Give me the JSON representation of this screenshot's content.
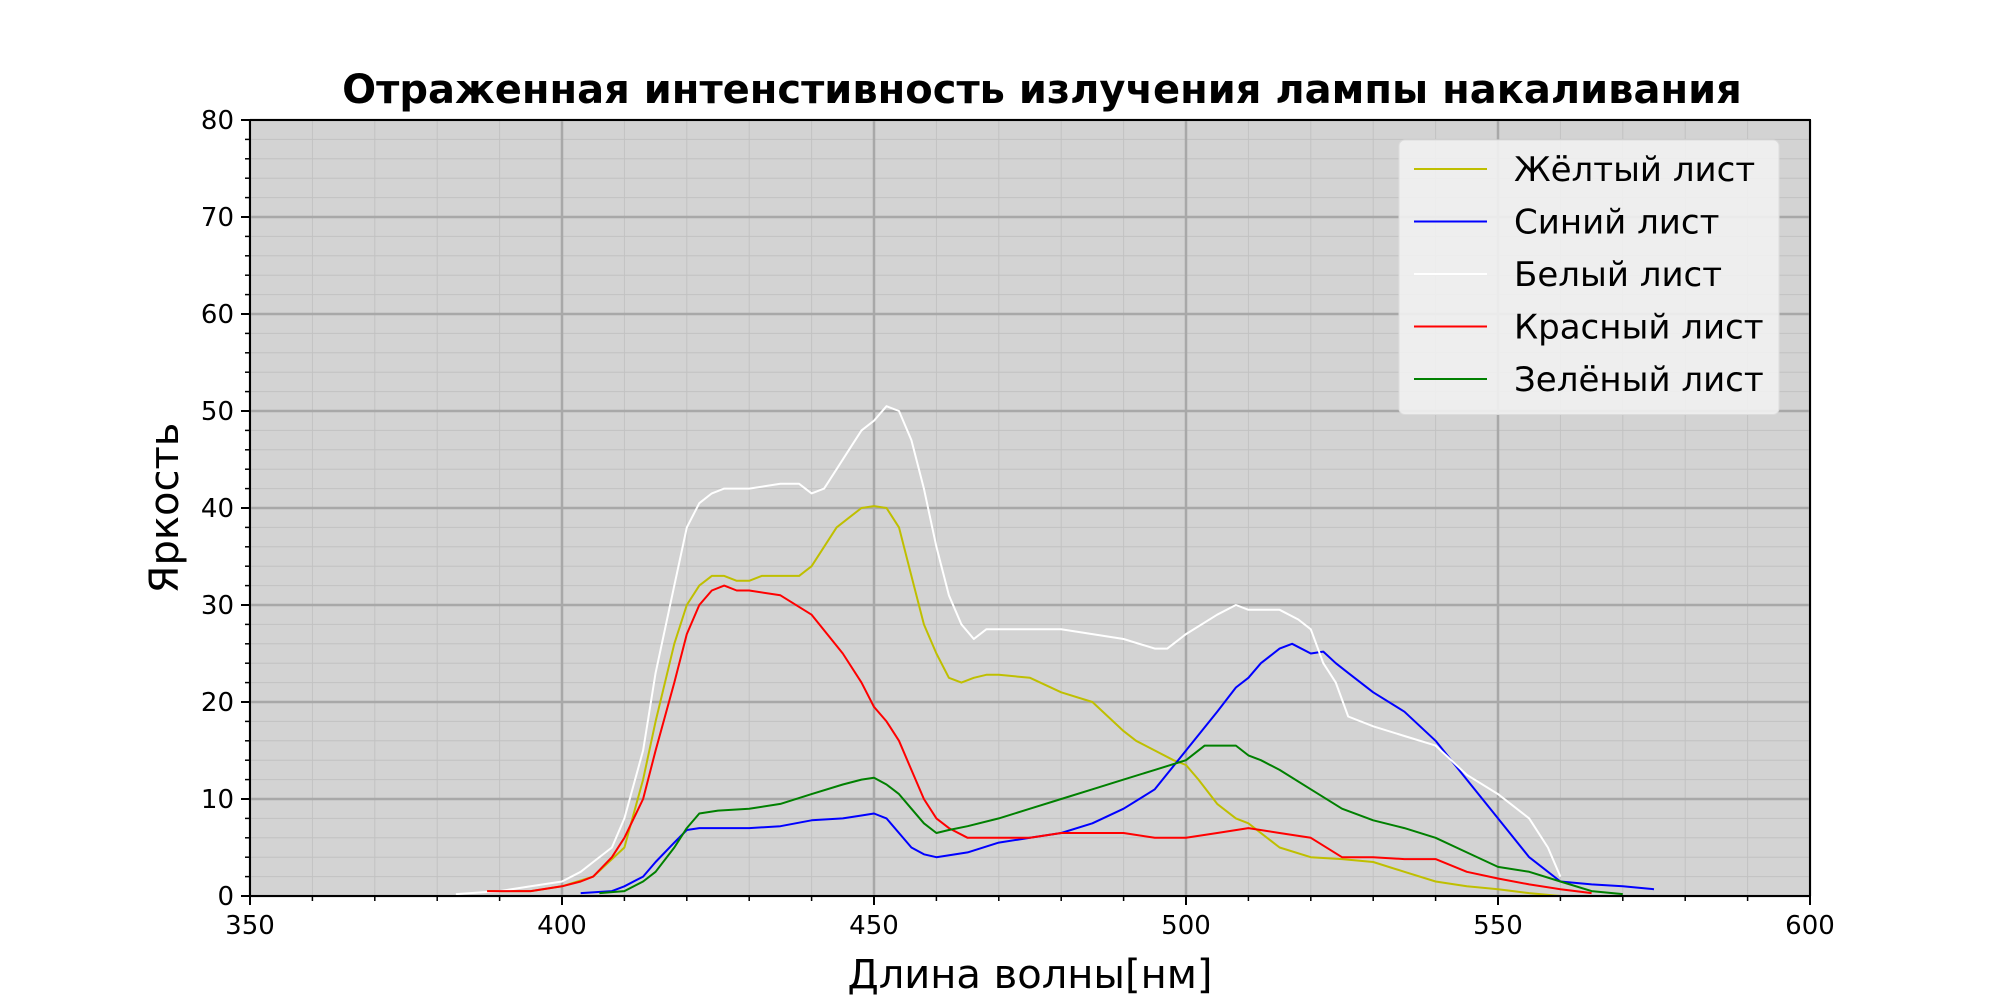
{
  "chart_data": {
    "type": "line",
    "title": "Отраженная интенстивность излучения лампы накаливания",
    "xlabel": "Длина волны[нм]",
    "ylabel": "Яркость",
    "xlim": [
      350,
      600
    ],
    "ylim": [
      0,
      80
    ],
    "xticks": [
      350,
      400,
      450,
      500,
      550,
      600
    ],
    "yticks": [
      0,
      10,
      20,
      30,
      40,
      50,
      60,
      70,
      80
    ],
    "grid": true,
    "legend_position": "top-right",
    "background_color": "#d3d3d3",
    "series": [
      {
        "name": "Жёлтый лист",
        "color": "#bfbf00",
        "x": [
          388,
          395,
          400,
          405,
          410,
          413,
          415,
          418,
          420,
          422,
          424,
          426,
          428,
          430,
          432,
          435,
          438,
          440,
          442,
          444,
          446,
          448,
          450,
          452,
          454,
          456,
          458,
          460,
          462,
          464,
          466,
          468,
          470,
          475,
          480,
          485,
          490,
          492,
          495,
          498,
          500,
          502,
          505,
          508,
          510,
          515,
          520,
          525,
          530,
          535,
          540,
          545,
          550,
          555,
          560,
          565,
          570
        ],
        "y": [
          0.5,
          0.5,
          1,
          2,
          5,
          12,
          18,
          26,
          30,
          32,
          33,
          33,
          32.5,
          32.5,
          33,
          33,
          33,
          34,
          36,
          38,
          39,
          40,
          40.2,
          40,
          38,
          33,
          28,
          25,
          22.5,
          22,
          22.5,
          22.8,
          22.8,
          22.5,
          21,
          20,
          17,
          16,
          15,
          14,
          13.5,
          12,
          9.5,
          8,
          7.5,
          5,
          4,
          3.8,
          3.5,
          2.5,
          1.5,
          1,
          0.7,
          0.3,
          0,
          0,
          0
        ]
      },
      {
        "name": "Синий лист",
        "color": "#0000ff",
        "x": [
          403,
          408,
          410,
          413,
          415,
          418,
          420,
          422,
          425,
          430,
          435,
          440,
          445,
          448,
          450,
          452,
          454,
          456,
          458,
          460,
          465,
          470,
          475,
          480,
          485,
          490,
          495,
          500,
          505,
          508,
          510,
          512,
          515,
          517,
          520,
          522,
          524,
          526,
          530,
          535,
          540,
          545,
          550,
          555,
          560,
          565,
          570,
          575
        ],
        "y": [
          0.3,
          0.5,
          1,
          2,
          3.5,
          5.5,
          6.8,
          7,
          7,
          7,
          7.2,
          7.8,
          8,
          8.3,
          8.5,
          8,
          6.5,
          5,
          4.3,
          4,
          4.5,
          5.5,
          6,
          6.5,
          7.5,
          9,
          11,
          15,
          19,
          21.5,
          22.5,
          24,
          25.5,
          26,
          25,
          25.2,
          24,
          23,
          21,
          19,
          16,
          12,
          8,
          4,
          1.5,
          1.2,
          1,
          0.7
        ]
      },
      {
        "name": "Белый лист",
        "color": "#ffffff",
        "x": [
          383,
          390,
          395,
          400,
          403,
          405,
          408,
          410,
          413,
          415,
          418,
          420,
          422,
          424,
          426,
          430,
          435,
          438,
          440,
          442,
          444,
          446,
          448,
          450,
          452,
          454,
          456,
          458,
          460,
          462,
          464,
          466,
          468,
          470,
          475,
          480,
          485,
          490,
          495,
          497,
          500,
          505,
          508,
          510,
          515,
          518,
          520,
          522,
          524,
          526,
          530,
          535,
          540,
          545,
          550,
          555,
          558,
          560
        ],
        "y": [
          0.2,
          0.5,
          1,
          1.5,
          2.5,
          3.5,
          5,
          8,
          15,
          23,
          32,
          38,
          40.5,
          41.5,
          42,
          42,
          42.5,
          42.5,
          41.5,
          42,
          44,
          46,
          48,
          49,
          50.5,
          50,
          47,
          42,
          36,
          31,
          28,
          26.5,
          27.5,
          27.5,
          27.5,
          27.5,
          27,
          26.5,
          25.5,
          25.5,
          27,
          29,
          30,
          29.5,
          29.5,
          28.5,
          27.5,
          24,
          22,
          18.5,
          17.5,
          16.5,
          15.5,
          12.5,
          10.5,
          8,
          5,
          2
        ]
      },
      {
        "name": "Красный лист",
        "color": "#ff0000",
        "x": [
          388,
          395,
          400,
          403,
          405,
          408,
          410,
          413,
          415,
          418,
          420,
          422,
          424,
          426,
          428,
          430,
          435,
          440,
          445,
          448,
          450,
          452,
          454,
          456,
          458,
          460,
          462,
          465,
          470,
          475,
          480,
          485,
          490,
          495,
          500,
          505,
          510,
          515,
          520,
          525,
          530,
          535,
          540,
          545,
          550,
          555,
          560,
          565
        ],
        "y": [
          0.5,
          0.5,
          1,
          1.5,
          2,
          4,
          6,
          10,
          15,
          22,
          27,
          30,
          31.5,
          32,
          31.5,
          31.5,
          31,
          29,
          25,
          22,
          19.5,
          18,
          16,
          13,
          10,
          8,
          7,
          6,
          6,
          6,
          6.5,
          6.5,
          6.5,
          6,
          6,
          6.5,
          7,
          6.5,
          6,
          4,
          4,
          3.8,
          3.8,
          2.5,
          1.8,
          1.2,
          0.7,
          0.3
        ]
      },
      {
        "name": "Зелёный лист",
        "color": "#008000",
        "x": [
          406,
          410,
          413,
          415,
          418,
          420,
          422,
          425,
          430,
          435,
          440,
          445,
          448,
          450,
          452,
          454,
          456,
          458,
          460,
          462,
          465,
          470,
          475,
          480,
          485,
          490,
          495,
          500,
          503,
          505,
          508,
          510,
          512,
          515,
          520,
          525,
          530,
          535,
          540,
          545,
          550,
          555,
          560,
          565,
          570
        ],
        "y": [
          0.3,
          0.5,
          1.5,
          2.5,
          5,
          7,
          8.5,
          8.8,
          9,
          9.5,
          10.5,
          11.5,
          12,
          12.2,
          11.5,
          10.5,
          9,
          7.5,
          6.5,
          6.8,
          7.2,
          8,
          9,
          10,
          11,
          12,
          13,
          14,
          15.5,
          15.5,
          15.5,
          14.5,
          14,
          13,
          11,
          9,
          7.8,
          7,
          6,
          4.5,
          3,
          2.5,
          1.5,
          0.5,
          0.2
        ]
      }
    ]
  }
}
